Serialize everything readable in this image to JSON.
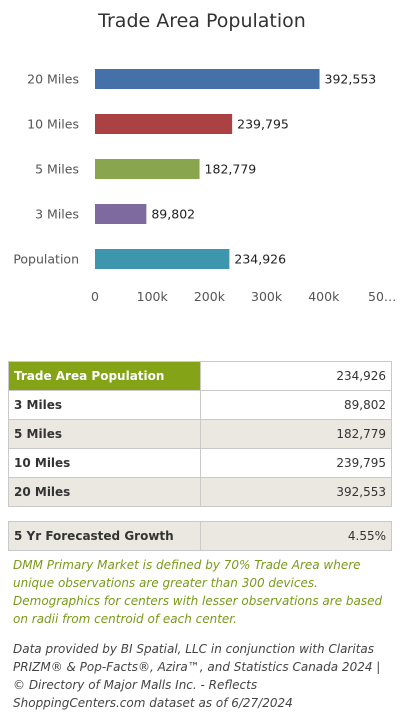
{
  "chart_data": {
    "type": "bar",
    "orientation": "horizontal",
    "title": "Trade Area Population",
    "categories": [
      "20 Miles",
      "10 Miles",
      "5 Miles",
      "3 Miles",
      "Population"
    ],
    "values": [
      392553,
      239795,
      182779,
      89802,
      234926
    ],
    "value_labels": [
      "392,553",
      "239,795",
      "182,779",
      "89,802",
      "234,926"
    ],
    "colors": [
      "#4472a8",
      "#aa4243",
      "#89a54e",
      "#7f6a9f",
      "#3d96ae"
    ],
    "x_ticks": [
      "0",
      "100k",
      "200k",
      "300k",
      "400k",
      "50…"
    ],
    "xlim": [
      0,
      500000
    ],
    "grid": false,
    "legend": "none"
  },
  "population_table": {
    "header": {
      "label": "Trade Area Population",
      "value": "234,926"
    },
    "rows": [
      {
        "label": "3 Miles",
        "value": "89,802"
      },
      {
        "label": "5 Miles",
        "value": "182,779"
      },
      {
        "label": "10 Miles",
        "value": "239,795"
      },
      {
        "label": "20 Miles",
        "value": "392,553"
      }
    ]
  },
  "growth": {
    "label": "5 Yr Forecasted Growth",
    "value": "4.55%"
  },
  "note": "DMM Primary Market is defined by 70% Trade Area where unique observations are greater than 300 devices. Demographics for centers with lesser observations are based on radii from centroid of each center.",
  "source": "Data provided by BI Spatial, LLC in conjunction with Claritas PRIZM® & Pop-Facts®, Azira™, and Statistics Canada 2024 | © Directory of Major Malls Inc. - Reflects ShoppingCenters.com dataset as of 6/27/2024",
  "colors": {
    "header_green": "#84a317",
    "note_green": "#7a9a1a",
    "row_shade": "#ebe8e1"
  }
}
